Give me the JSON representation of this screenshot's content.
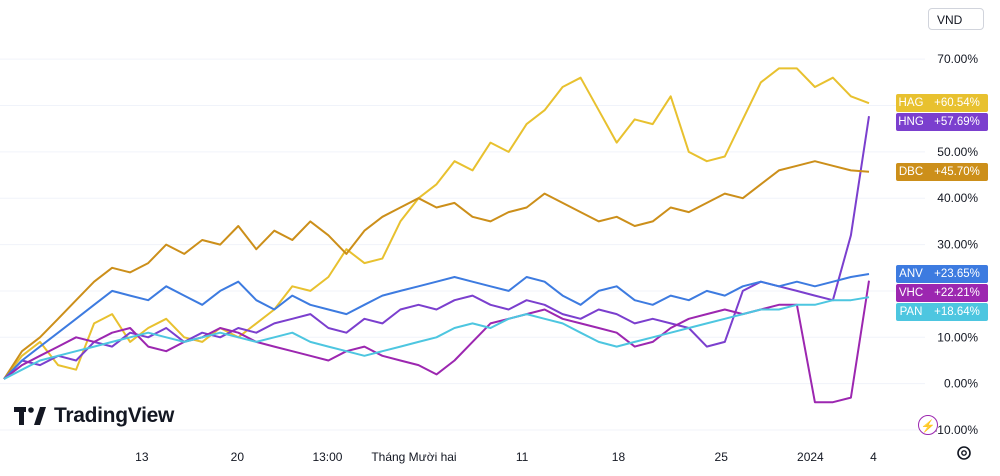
{
  "currency_selector": {
    "value": "VND"
  },
  "logo": {
    "text": "TradingView"
  },
  "chart_data": {
    "type": "line",
    "ylim": [
      -10,
      75
    ],
    "y_ticks": [
      "70.00%",
      "60.00%",
      "50.00%",
      "40.00%",
      "30.00%",
      "20.00%",
      "10.00%",
      "0.00%",
      "-10.00%"
    ],
    "y_tick_values": [
      70,
      60,
      50,
      40,
      30,
      20,
      10,
      0,
      -10
    ],
    "x_ticks": [
      "13",
      "20",
      "13:00",
      "Tháng Mười hai",
      "11",
      "18",
      "25",
      "2024",
      "4"
    ],
    "x_range": [
      0,
      100
    ],
    "x_tick_positions": [
      15.3,
      25.9,
      35.9,
      45.5,
      57.5,
      68.2,
      79.6,
      89.5,
      96.5
    ],
    "series": [
      {
        "name": "HAG",
        "color": "#e8c12f",
        "value": 60.54,
        "label": "+60.54%",
        "x": [
          0,
          2,
          4,
          6,
          8,
          10,
          12,
          14,
          16,
          18,
          20,
          22,
          24,
          26,
          28,
          30,
          32,
          34,
          36,
          38,
          40,
          42,
          44,
          46,
          48,
          50,
          52,
          54,
          56,
          58,
          60,
          62,
          64,
          66,
          68,
          70,
          72,
          74,
          76,
          78,
          80,
          82,
          84,
          86,
          88,
          90,
          92,
          94,
          96
        ],
        "y": [
          1,
          6,
          9,
          4,
          3,
          13,
          15,
          9,
          12,
          14,
          10,
          9,
          12,
          10,
          13,
          16,
          21,
          20,
          23,
          29,
          26,
          27,
          35,
          40,
          43,
          48,
          46,
          52,
          50,
          56,
          59,
          64,
          66,
          59,
          52,
          57,
          56,
          62,
          50,
          48,
          49,
          57,
          65,
          68,
          68,
          64,
          66,
          62,
          60.5
        ]
      },
      {
        "name": "HNG",
        "color": "#7b3fce",
        "value": 57.69,
        "label": "+57.69%",
        "x": [
          0,
          2,
          4,
          6,
          8,
          10,
          12,
          14,
          16,
          18,
          20,
          22,
          24,
          26,
          28,
          30,
          32,
          34,
          36,
          38,
          40,
          42,
          44,
          46,
          48,
          50,
          52,
          54,
          56,
          58,
          60,
          62,
          64,
          66,
          68,
          70,
          72,
          74,
          76,
          78,
          80,
          82,
          84,
          86,
          88,
          90,
          92,
          94,
          96
        ],
        "y": [
          1,
          5,
          4,
          6,
          5,
          9,
          8,
          11,
          10,
          12,
          9,
          11,
          10,
          12,
          11,
          13,
          14,
          15,
          12,
          11,
          14,
          13,
          16,
          17,
          16,
          18,
          19,
          17,
          16,
          18,
          17,
          15,
          14,
          16,
          15,
          13,
          14,
          13,
          12,
          8,
          9,
          20,
          22,
          21,
          20,
          19,
          18,
          32,
          57.7
        ]
      },
      {
        "name": "DBC",
        "color": "#cc8f1a",
        "value": 45.7,
        "label": "+45.70%",
        "x": [
          0,
          2,
          4,
          6,
          8,
          10,
          12,
          14,
          16,
          18,
          20,
          22,
          24,
          26,
          28,
          30,
          32,
          34,
          36,
          38,
          40,
          42,
          44,
          46,
          48,
          50,
          52,
          54,
          56,
          58,
          60,
          62,
          64,
          66,
          68,
          70,
          72,
          74,
          76,
          78,
          80,
          82,
          84,
          86,
          88,
          90,
          92,
          94,
          96
        ],
        "y": [
          1,
          7,
          10,
          14,
          18,
          22,
          25,
          24,
          26,
          30,
          28,
          31,
          30,
          34,
          29,
          33,
          31,
          35,
          32,
          28,
          33,
          36,
          38,
          40,
          38,
          39,
          36,
          35,
          37,
          38,
          41,
          39,
          37,
          35,
          36,
          34,
          35,
          38,
          37,
          39,
          41,
          40,
          43,
          46,
          47,
          48,
          47,
          46,
          45.7
        ]
      },
      {
        "name": "ANV",
        "color": "#3d7be0",
        "value": 23.65,
        "label": "+23.65%",
        "x": [
          0,
          2,
          4,
          6,
          8,
          10,
          12,
          14,
          16,
          18,
          20,
          22,
          24,
          26,
          28,
          30,
          32,
          34,
          36,
          38,
          40,
          42,
          44,
          46,
          48,
          50,
          52,
          54,
          56,
          58,
          60,
          62,
          64,
          66,
          68,
          70,
          72,
          74,
          76,
          78,
          80,
          82,
          84,
          86,
          88,
          90,
          92,
          94,
          96
        ],
        "y": [
          1,
          5,
          8,
          11,
          14,
          17,
          20,
          19,
          18,
          21,
          19,
          17,
          20,
          22,
          18,
          16,
          19,
          17,
          16,
          15,
          17,
          19,
          20,
          21,
          22,
          23,
          22,
          21,
          20,
          23,
          22,
          19,
          17,
          20,
          21,
          18,
          17,
          19,
          18,
          20,
          19,
          21,
          22,
          21,
          22,
          21,
          22,
          23,
          23.65
        ]
      },
      {
        "name": "VHC",
        "color": "#9c27b0",
        "value": 22.21,
        "label": "+22.21%",
        "x": [
          0,
          2,
          4,
          6,
          8,
          10,
          12,
          14,
          16,
          18,
          20,
          22,
          24,
          26,
          28,
          30,
          32,
          34,
          36,
          38,
          40,
          42,
          44,
          46,
          48,
          50,
          52,
          54,
          56,
          58,
          60,
          62,
          64,
          66,
          68,
          70,
          72,
          74,
          76,
          78,
          80,
          82,
          84,
          86,
          88,
          90,
          92,
          94,
          96
        ],
        "y": [
          1,
          4,
          6,
          8,
          10,
          9,
          11,
          12,
          8,
          7,
          9,
          10,
          12,
          11,
          9,
          8,
          7,
          6,
          5,
          7,
          8,
          6,
          5,
          4,
          2,
          5,
          9,
          13,
          14,
          15,
          16,
          14,
          13,
          12,
          11,
          8,
          9,
          12,
          14,
          15,
          16,
          15,
          16,
          17,
          17,
          -4,
          -4,
          -3,
          22.2
        ]
      },
      {
        "name": "PAN",
        "color": "#4dc6e0",
        "value": 18.64,
        "label": "+18.64%",
        "x": [
          0,
          2,
          4,
          6,
          8,
          10,
          12,
          14,
          16,
          18,
          20,
          22,
          24,
          26,
          28,
          30,
          32,
          34,
          36,
          38,
          40,
          42,
          44,
          46,
          48,
          50,
          52,
          54,
          56,
          58,
          60,
          62,
          64,
          66,
          68,
          70,
          72,
          74,
          76,
          78,
          80,
          82,
          84,
          86,
          88,
          90,
          92,
          94,
          96
        ],
        "y": [
          1,
          3,
          5,
          6,
          7,
          8,
          9,
          10,
          11,
          10,
          9,
          10,
          11,
          10,
          9,
          10,
          11,
          9,
          8,
          7,
          6,
          7,
          8,
          9,
          10,
          12,
          13,
          12,
          14,
          15,
          14,
          13,
          11,
          9,
          8,
          9,
          10,
          11,
          12,
          13,
          14,
          15,
          16,
          16,
          17,
          17,
          18,
          18,
          18.64
        ]
      }
    ]
  }
}
